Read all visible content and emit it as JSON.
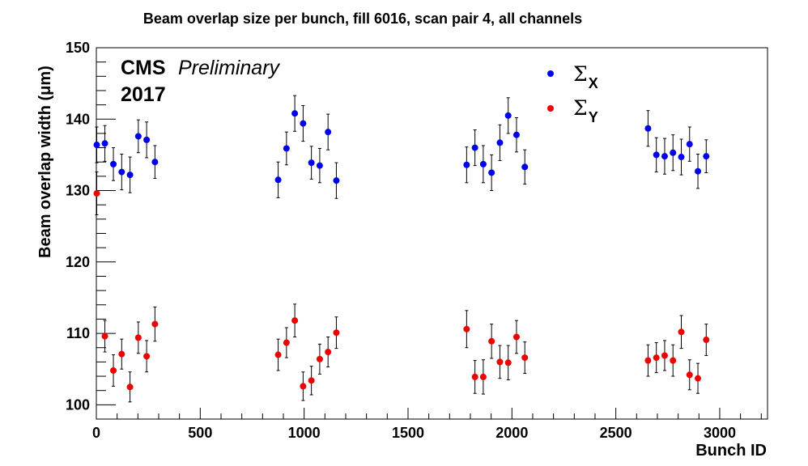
{
  "chart_data": {
    "type": "scatter",
    "title": "Beam overlap size per bunch, fill 6016, scan pair 4, all channels",
    "xlabel": "Bunch ID",
    "ylabel": "Beam overlap width (μm)",
    "xlim": [
      0,
      3230
    ],
    "ylim": [
      98,
      150
    ],
    "x_ticks": [
      "0",
      "500",
      "1000",
      "1500",
      "2000",
      "2500",
      "3000"
    ],
    "y_ticks": [
      "100",
      "110",
      "120",
      "130",
      "140",
      "150"
    ],
    "annotation": {
      "experiment": "CMS",
      "status": "Preliminary",
      "year": "2017"
    },
    "legend": {
      "position": "top-right"
    },
    "series": [
      {
        "name": "Σ",
        "name_sub": "X",
        "color": "#0000ee",
        "x": [
          2,
          41,
          82,
          122,
          162,
          202,
          242,
          282,
          875,
          915,
          955,
          995,
          1035,
          1075,
          1115,
          1155,
          1782,
          1822,
          1862,
          1902,
          1942,
          1982,
          2022,
          2062,
          2655,
          2695,
          2735,
          2775,
          2815,
          2855,
          2895,
          2935
        ],
        "y": [
          136.4,
          136.6,
          133.7,
          132.6,
          132.2,
          137.6,
          137.1,
          134.0,
          131.5,
          135.9,
          140.8,
          139.4,
          133.9,
          133.5,
          138.2,
          131.4,
          133.6,
          136.0,
          133.7,
          132.5,
          136.7,
          140.5,
          137.8,
          133.3,
          138.7,
          135.0,
          134.8,
          135.3,
          134.7,
          136.5,
          132.7,
          134.8
        ],
        "err": [
          2.5,
          2.5,
          2.3,
          2.5,
          2.5,
          2.3,
          2.5,
          2.3,
          2.5,
          2.3,
          2.5,
          2.5,
          2.3,
          2.4,
          2.5,
          2.5,
          2.5,
          2.5,
          2.6,
          2.5,
          2.5,
          2.5,
          2.4,
          2.4,
          2.5,
          2.4,
          2.5,
          2.5,
          2.5,
          2.4,
          2.4,
          2.3
        ]
      },
      {
        "name": "Σ",
        "name_sub": "Y",
        "color": "#ee0000",
        "x": [
          2,
          41,
          82,
          122,
          162,
          202,
          242,
          282,
          875,
          915,
          955,
          995,
          1035,
          1075,
          1115,
          1155,
          1782,
          1822,
          1862,
          1902,
          1942,
          1982,
          2022,
          2062,
          2655,
          2695,
          2735,
          2775,
          2815,
          2855,
          2895,
          2935
        ],
        "y": [
          129.6,
          109.6,
          104.8,
          107.1,
          102.5,
          109.4,
          106.8,
          111.3,
          107.0,
          108.7,
          111.8,
          102.6,
          103.4,
          106.4,
          107.4,
          110.1,
          110.6,
          103.9,
          103.9,
          108.9,
          106.0,
          105.9,
          109.5,
          106.6,
          106.2,
          106.6,
          106.9,
          106.2,
          110.2,
          104.2,
          103.7,
          109.1
        ],
        "err": [
          3.0,
          2.2,
          2.2,
          2.1,
          2.1,
          2.2,
          2.2,
          2.4,
          2.2,
          2.1,
          2.3,
          2.0,
          2.0,
          2.1,
          2.1,
          2.2,
          2.6,
          2.3,
          2.4,
          2.4,
          2.3,
          2.4,
          2.3,
          2.2,
          2.2,
          2.1,
          2.1,
          2.2,
          2.3,
          2.1,
          2.1,
          2.2
        ]
      }
    ]
  }
}
